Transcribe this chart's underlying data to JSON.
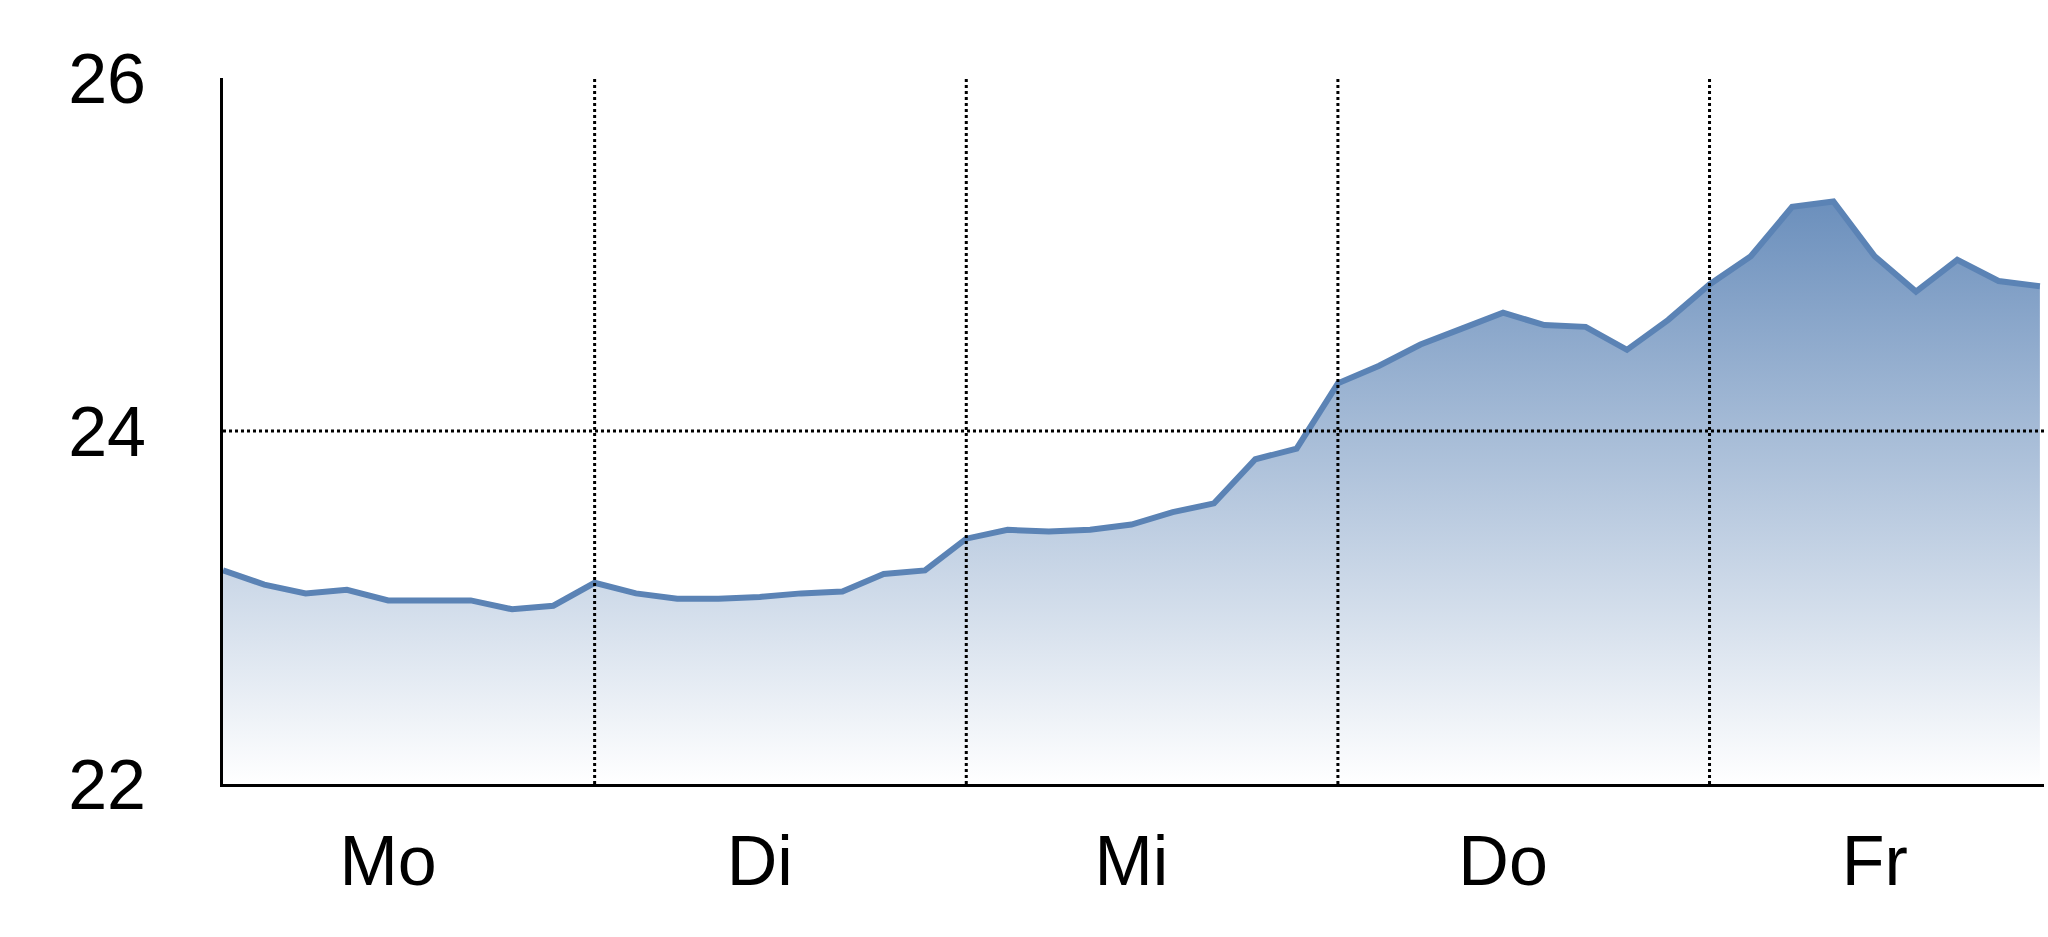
{
  "chart_data": {
    "type": "area",
    "categories": [
      null,
      null,
      null,
      null,
      "Mo",
      null,
      null,
      null,
      null,
      null,
      null,
      null,
      null,
      "Di",
      null,
      null,
      null,
      null,
      null,
      null,
      null,
      null,
      "Mi",
      null,
      null,
      null,
      null,
      null,
      null,
      null,
      null,
      "Do",
      null,
      null,
      null,
      null,
      null,
      null,
      null,
      null,
      "Fr",
      null,
      null,
      null,
      null
    ],
    "series": [
      {
        "color": "#5b83b5",
        "values": [
          23.21,
          23.13,
          23.08,
          23.1,
          23.04,
          23.04,
          23.04,
          22.99,
          23.01,
          23.14,
          23.08,
          23.05,
          23.05,
          23.06,
          23.08,
          23.09,
          23.19,
          23.21,
          23.39,
          23.44,
          23.43,
          23.44,
          23.47,
          23.54,
          23.59,
          23.84,
          23.9,
          24.27,
          24.37,
          24.49,
          24.58,
          24.67,
          24.6,
          24.59,
          24.46,
          24.63,
          24.83,
          24.99,
          25.27,
          25.3,
          24.99,
          24.79,
          24.97,
          24.85,
          24.82
        ]
      }
    ],
    "ylim": [
      22,
      26
    ],
    "yticks": [
      22,
      24,
      26
    ],
    "ref_lines": [
      {
        "axis": "y",
        "value": 24,
        "line_style": "dotted",
        "color": "#000000"
      }
    ],
    "grid": "x",
    "marker": "none",
    "line_style": "solid"
  }
}
